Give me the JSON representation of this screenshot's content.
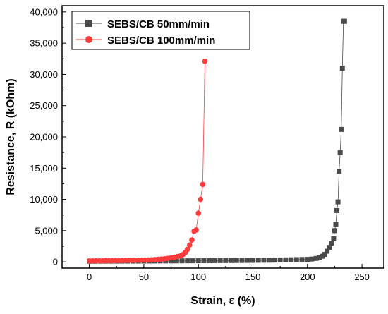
{
  "chart_data": {
    "type": "scatter",
    "xlabel": "Strain, ε (%)",
    "ylabel": "Resistance, R (kOhm)",
    "xlim": [
      -25,
      270
    ],
    "ylim": [
      -1000,
      41000
    ],
    "x_ticks": [
      0,
      50,
      100,
      150,
      200,
      250
    ],
    "x_tick_labels": [
      "0",
      "50",
      "100",
      "150",
      "200",
      "250"
    ],
    "y_ticks": [
      0,
      5000,
      10000,
      15000,
      20000,
      25000,
      30000,
      35000,
      40000
    ],
    "y_tick_labels": [
      "0",
      "5,000",
      "10,000",
      "15,000",
      "20,000",
      "25,000",
      "30,000",
      "35,000",
      "40,000"
    ],
    "grid": false,
    "legend_position": "top-left",
    "series": [
      {
        "name": "SEBS/CB 50mm/min",
        "color": "#4a4a4a",
        "marker": "square",
        "x": [
          0,
          5,
          10,
          15,
          20,
          25,
          30,
          35,
          40,
          45,
          50,
          55,
          60,
          65,
          70,
          75,
          80,
          85,
          90,
          95,
          100,
          105,
          110,
          115,
          120,
          125,
          130,
          135,
          140,
          145,
          150,
          155,
          160,
          165,
          170,
          175,
          180,
          185,
          190,
          195,
          200,
          204,
          208,
          211,
          214,
          216,
          218,
          220,
          222,
          224,
          225,
          226,
          227,
          228,
          229,
          230,
          231,
          232,
          233,
          234
        ],
        "y": [
          100,
          105,
          110,
          112,
          115,
          118,
          120,
          122,
          125,
          128,
          130,
          135,
          140,
          145,
          150,
          155,
          160,
          165,
          170,
          175,
          180,
          185,
          190,
          195,
          200,
          205,
          210,
          215,
          220,
          230,
          240,
          250,
          260,
          270,
          280,
          300,
          320,
          340,
          360,
          380,
          400,
          450,
          550,
          700,
          900,
          1200,
          1700,
          2300,
          3000,
          3700,
          5000,
          6000,
          8200,
          9600,
          14500,
          17500,
          21200,
          31000,
          38500,
          38500
        ]
      },
      {
        "name": "SEBS/CB 100mm/min",
        "color": "#ff3b3b",
        "marker": "circle",
        "x": [
          0,
          3,
          6,
          9,
          12,
          15,
          18,
          21,
          24,
          27,
          30,
          33,
          36,
          39,
          42,
          45,
          48,
          51,
          54,
          57,
          60,
          63,
          66,
          69,
          72,
          75,
          78,
          81,
          84,
          86,
          88,
          90,
          92,
          94,
          96,
          98,
          100,
          102,
          104,
          106
        ],
        "y": [
          150,
          155,
          160,
          165,
          170,
          175,
          180,
          185,
          190,
          200,
          210,
          220,
          230,
          240,
          250,
          260,
          275,
          290,
          310,
          330,
          360,
          400,
          450,
          500,
          560,
          640,
          740,
          860,
          1000,
          1200,
          1500,
          2000,
          2700,
          3500,
          4900,
          5100,
          7800,
          10000,
          12400,
          32100
        ]
      }
    ]
  }
}
